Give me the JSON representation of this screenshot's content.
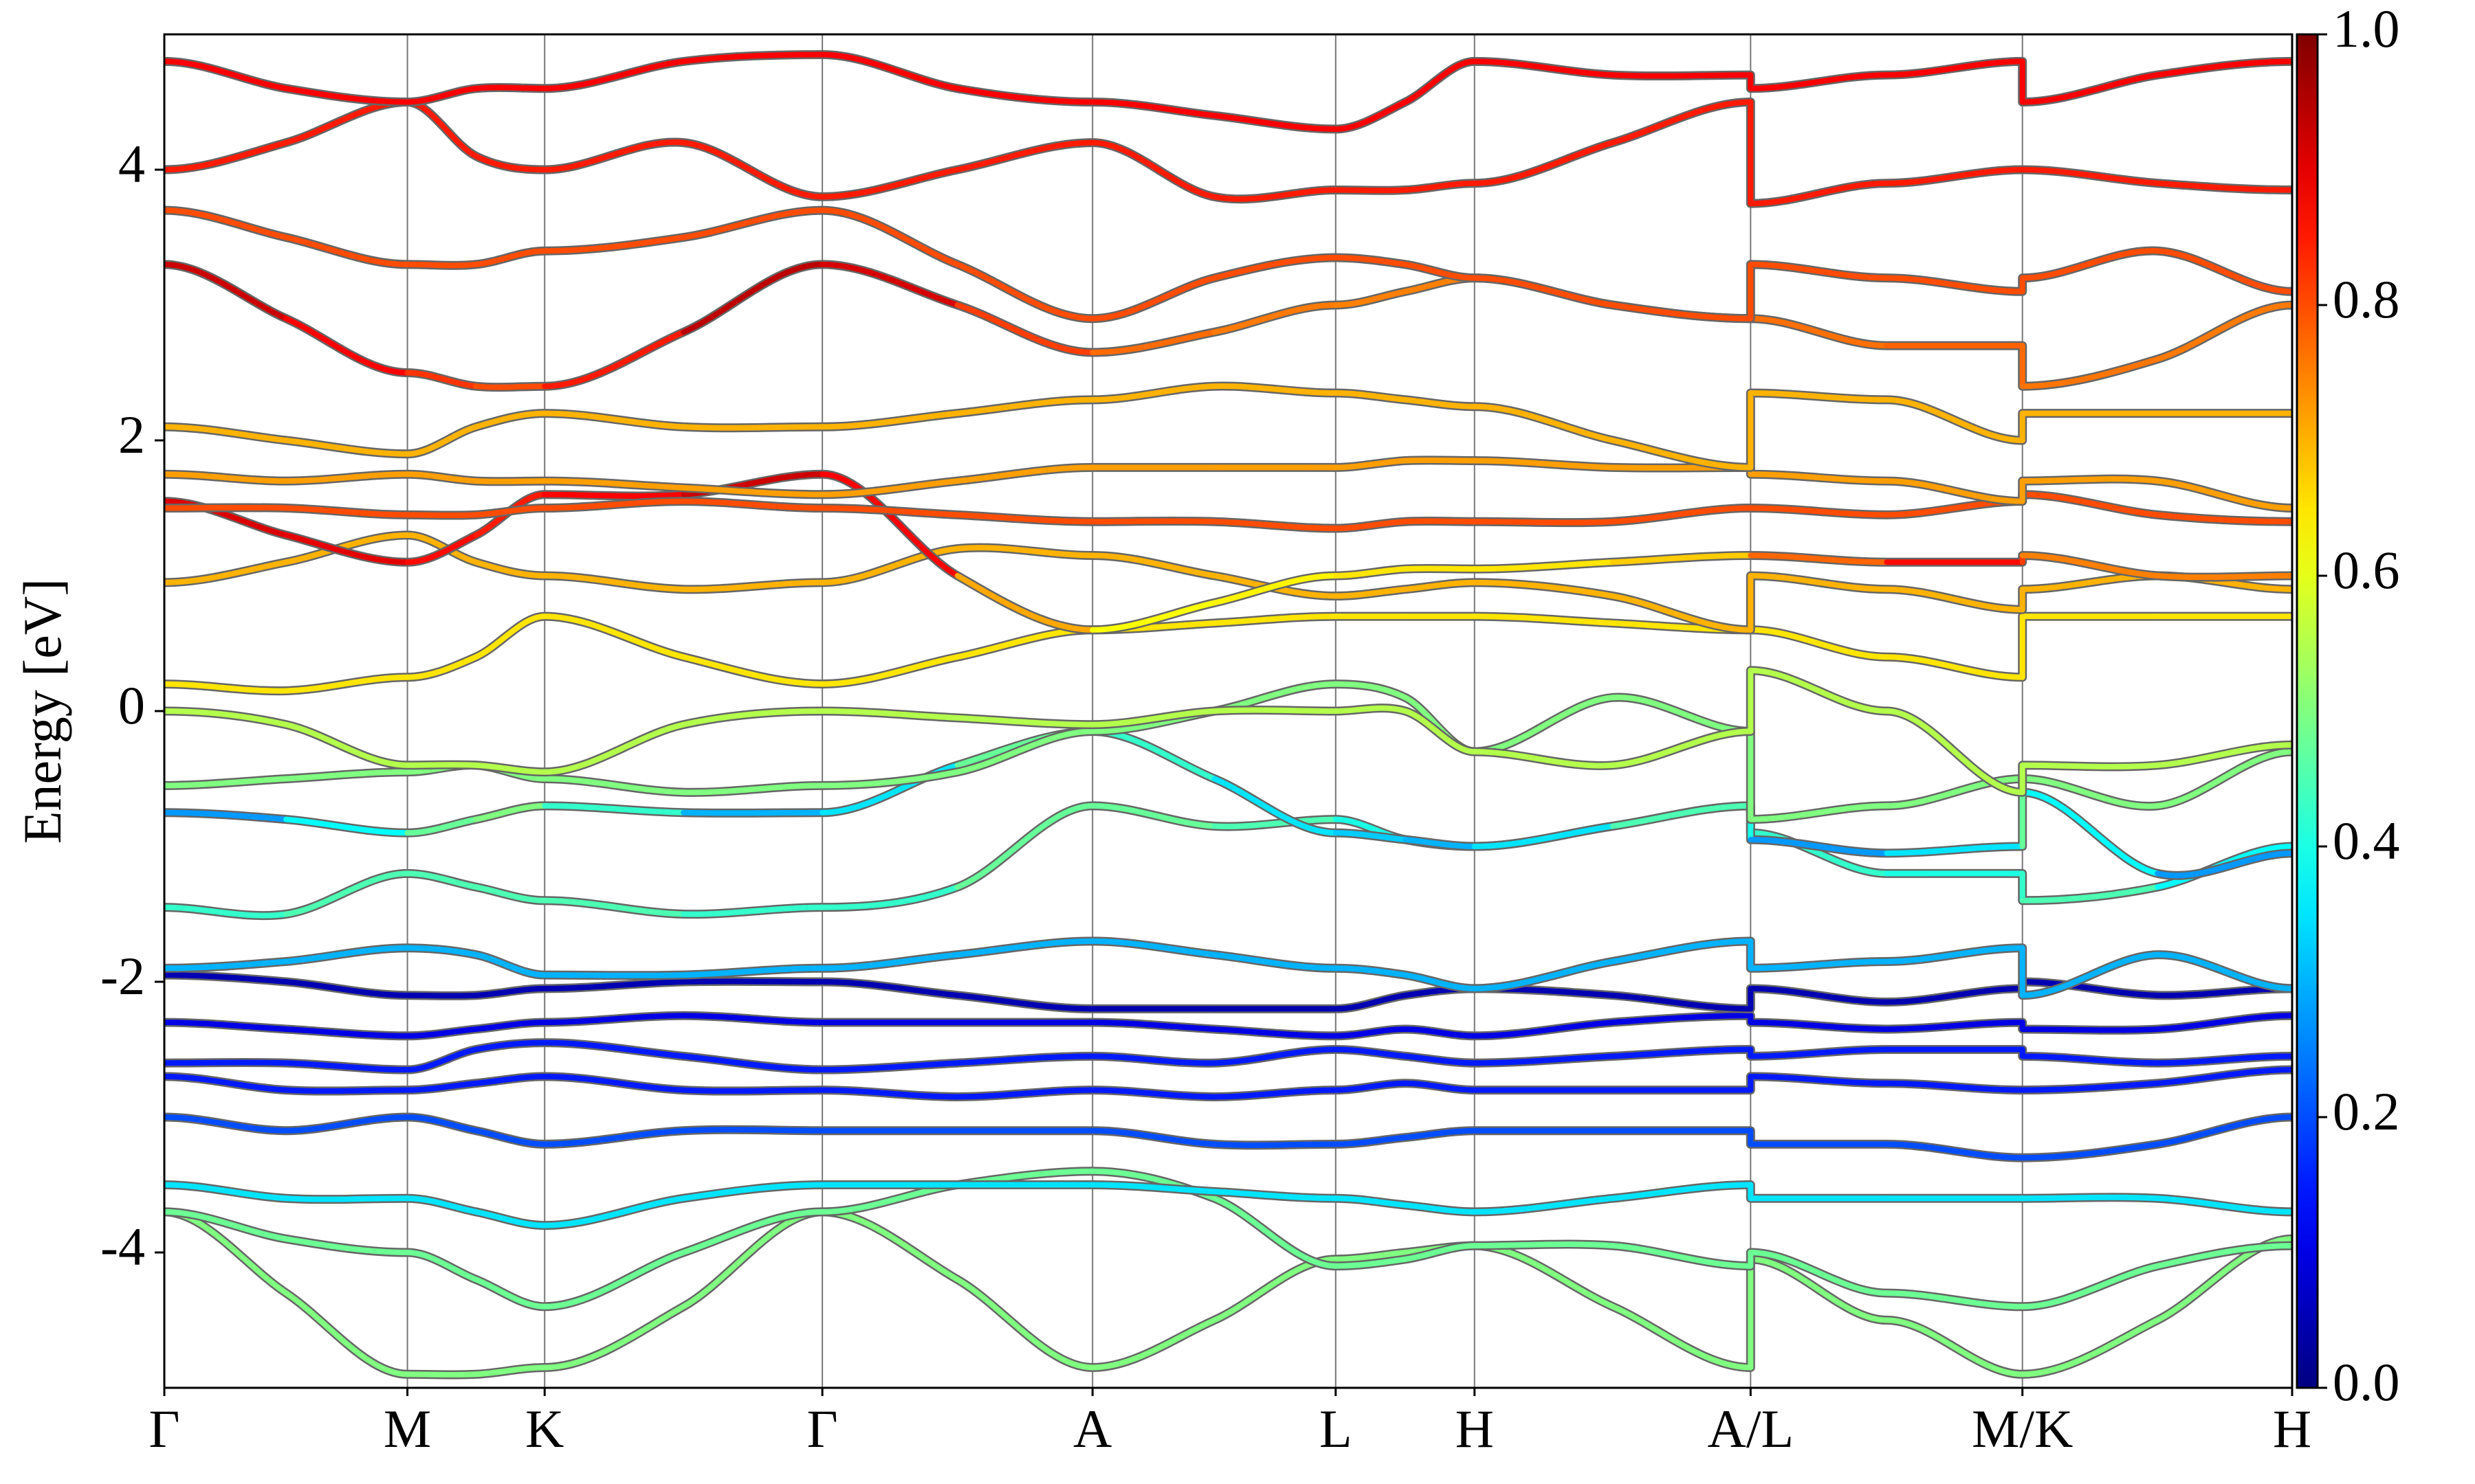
{
  "chart_data": {
    "type": "band-structure",
    "ylabel": "Energy [eV]",
    "ylim": [
      -5,
      5
    ],
    "yticks": [
      -4,
      -2,
      0,
      2,
      4
    ],
    "xlim": [
      0,
      4
    ],
    "xticks": [
      {
        "value": 0,
        "label": "Γ"
      },
      {
        "value": 0.457,
        "label": "M"
      },
      {
        "value": 0.715,
        "label": "K"
      },
      {
        "value": 1.237,
        "label": "Γ"
      },
      {
        "value": 1.745,
        "label": "A"
      },
      {
        "value": 2.202,
        "label": "L"
      },
      {
        "value": 2.463,
        "label": "H"
      },
      {
        "value": 2.982,
        "label": "A/L"
      },
      {
        "value": 3.493,
        "label": "M/K"
      },
      {
        "value": 4,
        "label": "H"
      }
    ],
    "colormap": "jet",
    "colorbar": {
      "lim": [
        0,
        1
      ],
      "ticks": [
        {
          "value": 0,
          "label": "0.0"
        },
        {
          "value": 0.2,
          "label": "0.2"
        },
        {
          "value": 0.4,
          "label": "0.4"
        },
        {
          "value": 0.6,
          "label": "0.6"
        },
        {
          "value": 0.8,
          "label": "0.8"
        },
        {
          "value": 1,
          "label": "1.0"
        }
      ]
    },
    "x": [
      0,
      0.229,
      0.457,
      0.586,
      0.715,
      0.976,
      1.237,
      1.491,
      1.745,
      1.974,
      2.202,
      2.333,
      2.463,
      2.723,
      2.982,
      2.982,
      3.238,
      3.493,
      3.493,
      3.747,
      4
    ],
    "series": [
      {
        "values": [
          -3.7,
          -4.3,
          -4.9,
          -4.9,
          -4.85,
          -4.4,
          -3.7,
          -4.2,
          -4.85,
          -4.5,
          -4.05,
          -4.0,
          -3.95,
          -4.4,
          -4.85,
          -4.05,
          -4.5,
          -4.9,
          -4.9,
          -4.5,
          -3.9
        ],
        "weight": 0.5
      },
      {
        "values": [
          -3.7,
          -3.9,
          -4.0,
          -4.2,
          -4.4,
          -4.0,
          -3.7,
          -3.5,
          -3.4,
          -3.6,
          -4.1,
          -4.05,
          -3.95,
          -3.95,
          -4.1,
          -4.0,
          -4.3,
          -4.4,
          -4.4,
          -4.1,
          -3.95
        ],
        "weight": 0.48
      },
      {
        "values": [
          -3.5,
          -3.6,
          -3.6,
          -3.7,
          -3.8,
          -3.6,
          -3.5,
          -3.5,
          -3.5,
          -3.55,
          -3.6,
          -3.65,
          -3.7,
          -3.6,
          -3.5,
          -3.6,
          -3.6,
          -3.6,
          -3.6,
          -3.6,
          -3.7
        ],
        "weight": 0.35
      },
      {
        "values": [
          -3.0,
          -3.1,
          -3.0,
          -3.1,
          -3.2,
          -3.1,
          -3.1,
          -3.1,
          -3.1,
          -3.2,
          -3.2,
          -3.15,
          -3.1,
          -3.1,
          -3.1,
          -3.2,
          -3.2,
          -3.3,
          -3.3,
          -3.2,
          -3.0
        ],
        "weight": 0.2
      },
      {
        "values": [
          -2.7,
          -2.8,
          -2.8,
          -2.75,
          -2.7,
          -2.8,
          -2.8,
          -2.85,
          -2.8,
          -2.85,
          -2.8,
          -2.75,
          -2.8,
          -2.8,
          -2.8,
          -2.7,
          -2.75,
          -2.8,
          -2.8,
          -2.75,
          -2.65
        ],
        "weight": 0.15
      },
      {
        "values": [
          -2.6,
          -2.6,
          -2.65,
          -2.5,
          -2.45,
          -2.55,
          -2.65,
          -2.6,
          -2.55,
          -2.6,
          -2.5,
          -2.55,
          -2.6,
          -2.55,
          -2.5,
          -2.55,
          -2.5,
          -2.5,
          -2.55,
          -2.6,
          -2.55
        ],
        "weight": 0.15
      },
      {
        "values": [
          -2.3,
          -2.35,
          -2.4,
          -2.35,
          -2.3,
          -2.25,
          -2.3,
          -2.3,
          -2.3,
          -2.35,
          -2.4,
          -2.35,
          -2.4,
          -2.3,
          -2.25,
          -2.3,
          -2.35,
          -2.3,
          -2.35,
          -2.35,
          -2.25
        ],
        "weight": 0.1
      },
      {
        "values": [
          -1.95,
          -2.0,
          -2.1,
          -2.1,
          -2.05,
          -2.0,
          -2.0,
          -2.1,
          -2.2,
          -2.2,
          -2.2,
          -2.1,
          -2.05,
          -2.1,
          -2.2,
          -2.05,
          -2.15,
          -2.05,
          -2.0,
          -2.1,
          -2.05
        ],
        "weight": 0.05
      },
      {
        "values": [
          -1.9,
          -1.85,
          -1.75,
          -1.8,
          -1.95,
          -1.95,
          -1.9,
          -1.8,
          -1.7,
          -1.8,
          -1.9,
          -1.95,
          -2.05,
          -1.85,
          -1.7,
          -1.9,
          -1.85,
          -1.75,
          -2.1,
          -1.8,
          -2.05
        ],
        "weight": 0.3
      },
      {
        "values": [
          -1.45,
          -1.5,
          -1.2,
          -1.3,
          -1.4,
          -1.5,
          -1.45,
          -1.3,
          -0.7,
          -0.85,
          -0.8,
          -0.95,
          -1.0,
          -0.85,
          -0.7,
          -0.9,
          -1.2,
          -1.2,
          -1.4,
          -1.3,
          -1.0
        ],
        "weights": [
          0.4,
          0.45,
          0.45,
          0.45,
          0.45,
          0.45,
          0.4,
          0.45,
          0.5,
          0.45,
          0.45,
          0.35,
          0.3,
          0.4,
          0.45,
          0.45,
          0.4,
          0.4,
          0.45,
          0.45,
          0.3
        ]
      },
      {
        "values": [
          -0.75,
          -0.8,
          -0.9,
          -0.8,
          -0.7,
          -0.75,
          -0.75,
          -0.4,
          -0.15,
          -0.5,
          -0.9,
          -0.95,
          -1.0,
          -0.85,
          -0.7,
          -0.95,
          -1.05,
          -1.0,
          -0.6,
          -1.2,
          -1.05
        ],
        "weights": [
          0.25,
          0.3,
          0.45,
          0.5,
          0.5,
          0.35,
          0.25,
          0.45,
          0.5,
          0.35,
          0.35,
          0.3,
          0.3,
          0.4,
          0.5,
          0.3,
          0.25,
          0.45,
          0.5,
          0.25,
          0.3
        ]
      },
      {
        "values": [
          -0.55,
          -0.5,
          -0.45,
          -0.4,
          -0.5,
          -0.6,
          -0.55,
          -0.45,
          -0.15,
          0.0,
          0.2,
          0.1,
          -0.3,
          0.1,
          -0.15,
          -0.8,
          -0.7,
          -0.5,
          -0.5,
          -0.7,
          -0.3
        ],
        "weight": 0.5
      },
      {
        "values": [
          0.0,
          -0.1,
          -0.4,
          -0.4,
          -0.45,
          -0.1,
          0.0,
          -0.05,
          -0.1,
          0.0,
          0.0,
          0.0,
          -0.3,
          -0.4,
          -0.15,
          0.3,
          0.0,
          -0.6,
          -0.4,
          -0.4,
          -0.25
        ],
        "weight": 0.55
      },
      {
        "values": [
          0.2,
          0.15,
          0.25,
          0.4,
          0.7,
          0.4,
          0.2,
          0.4,
          0.6,
          0.65,
          0.7,
          0.7,
          0.7,
          0.65,
          0.6,
          0.6,
          0.4,
          0.25,
          0.7,
          0.7,
          0.7
        ],
        "weight": 0.65
      },
      {
        "values": [
          0.95,
          1.1,
          1.3,
          1.1,
          1.0,
          0.9,
          0.95,
          1.2,
          1.15,
          1.0,
          0.85,
          0.9,
          0.95,
          0.85,
          0.6,
          1.0,
          0.9,
          0.75,
          0.9,
          1.0,
          0.9
        ],
        "weight": 0.7
      },
      {
        "values": [
          1.55,
          1.3,
          1.1,
          1.3,
          1.6,
          1.6,
          1.75,
          1.0,
          0.6,
          0.8,
          1.0,
          1.05,
          1.05,
          1.1,
          1.15,
          1.15,
          1.1,
          1.1,
          1.15,
          1.0,
          1.0
        ],
        "weights": [
          0.9,
          0.92,
          0.88,
          0.85,
          0.85,
          0.9,
          0.95,
          0.8,
          0.62,
          0.62,
          0.65,
          0.65,
          0.65,
          0.65,
          0.7,
          0.7,
          0.85,
          0.88,
          0.75,
          0.75,
          0.75
        ]
      },
      {
        "values": [
          1.5,
          1.5,
          1.45,
          1.45,
          1.5,
          1.55,
          1.5,
          1.45,
          1.4,
          1.4,
          1.35,
          1.4,
          1.4,
          1.4,
          1.5,
          1.5,
          1.45,
          1.55,
          1.6,
          1.45,
          1.4
        ],
        "weight": 0.8
      },
      {
        "values": [
          1.75,
          1.7,
          1.75,
          1.7,
          1.7,
          1.65,
          1.6,
          1.7,
          1.8,
          1.8,
          1.8,
          1.85,
          1.85,
          1.8,
          1.8,
          1.75,
          1.7,
          1.55,
          1.7,
          1.7,
          1.5
        ],
        "weight": 0.72
      },
      {
        "values": [
          2.1,
          2.0,
          1.9,
          2.1,
          2.2,
          2.1,
          2.1,
          2.2,
          2.3,
          2.4,
          2.35,
          2.3,
          2.25,
          2.0,
          1.8,
          2.35,
          2.3,
          2.0,
          2.2,
          2.2,
          2.2
        ],
        "weight": 0.7
      },
      {
        "values": [
          3.3,
          2.9,
          2.5,
          2.4,
          2.4,
          2.8,
          3.3,
          3.0,
          2.65,
          2.8,
          3.0,
          3.1,
          3.2,
          3.0,
          2.9,
          2.9,
          2.7,
          2.7,
          2.4,
          2.6,
          3.0
        ],
        "weights": [
          0.95,
          0.9,
          0.85,
          0.8,
          0.8,
          0.9,
          0.98,
          0.85,
          0.78,
          0.76,
          0.75,
          0.75,
          0.75,
          0.75,
          0.75,
          0.75,
          0.78,
          0.78,
          0.76,
          0.76,
          0.75
        ]
      },
      {
        "values": [
          3.7,
          3.5,
          3.3,
          3.3,
          3.4,
          3.5,
          3.7,
          3.3,
          2.9,
          3.2,
          3.35,
          3.3,
          3.2,
          3.0,
          2.9,
          3.3,
          3.2,
          3.1,
          3.2,
          3.4,
          3.1
        ],
        "weight": 0.8
      },
      {
        "values": [
          4.0,
          4.2,
          4.5,
          4.1,
          4.0,
          4.2,
          3.8,
          4.0,
          4.2,
          3.8,
          3.85,
          3.85,
          3.9,
          4.2,
          4.5,
          3.75,
          3.9,
          4.0,
          4.0,
          3.9,
          3.85
        ],
        "weight": 0.85
      },
      {
        "values": [
          4.8,
          4.6,
          4.5,
          4.6,
          4.6,
          4.8,
          4.85,
          4.6,
          4.5,
          4.4,
          4.3,
          4.5,
          4.8,
          4.7,
          4.7,
          4.6,
          4.7,
          4.8,
          4.5,
          4.7,
          4.8
        ],
        "weight": 0.88
      }
    ]
  }
}
